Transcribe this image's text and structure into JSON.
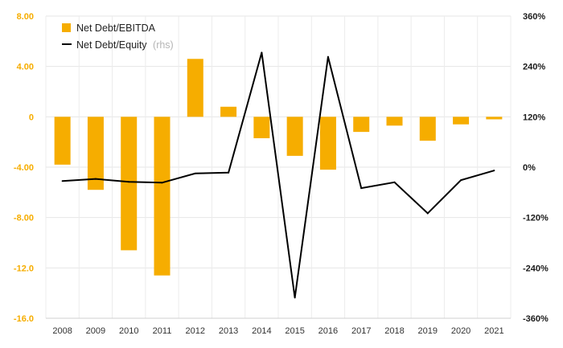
{
  "chart_data": {
    "type": "bar+line",
    "categories": [
      "2008",
      "2009",
      "2010",
      "2011",
      "2012",
      "2013",
      "2014",
      "2015",
      "2016",
      "2017",
      "2018",
      "2019",
      "2020",
      "2021"
    ],
    "series": [
      {
        "name": "Net Debt/EBITDA",
        "type": "bar",
        "axis": "left",
        "color": "#f6ad00",
        "values": [
          -3.8,
          -5.8,
          -10.6,
          -12.6,
          4.6,
          0.8,
          -1.7,
          -3.1,
          -4.2,
          -1.2,
          -0.7,
          -1.9,
          -0.6,
          -0.2
        ]
      },
      {
        "name": "Net Debt/Equity",
        "name_note": "(rhs)",
        "type": "line",
        "axis": "right",
        "color": "#000000",
        "values": [
          -33,
          -28,
          -35,
          -37,
          -15,
          -13,
          273,
          -311,
          263,
          -50,
          -36,
          -110,
          -31,
          -8
        ]
      }
    ],
    "left_axis": {
      "ticks": [
        8,
        4,
        0,
        -4,
        -8,
        -12,
        -16
      ],
      "tick_labels": [
        "8.00",
        "4.00",
        "0",
        "-4.00",
        "-8.00",
        "-12.0",
        "-16.0"
      ],
      "ylim": [
        -16,
        8
      ],
      "color": "#f6ad00"
    },
    "right_axis": {
      "ticks": [
        360,
        240,
        120,
        0,
        -120,
        -240,
        -360
      ],
      "tick_labels": [
        "360%",
        "240%",
        "120%",
        "0%",
        "-120%",
        "-240%",
        "-360%"
      ],
      "ylim": [
        -360,
        360
      ]
    },
    "grid": true,
    "legend_position": "top-left"
  }
}
